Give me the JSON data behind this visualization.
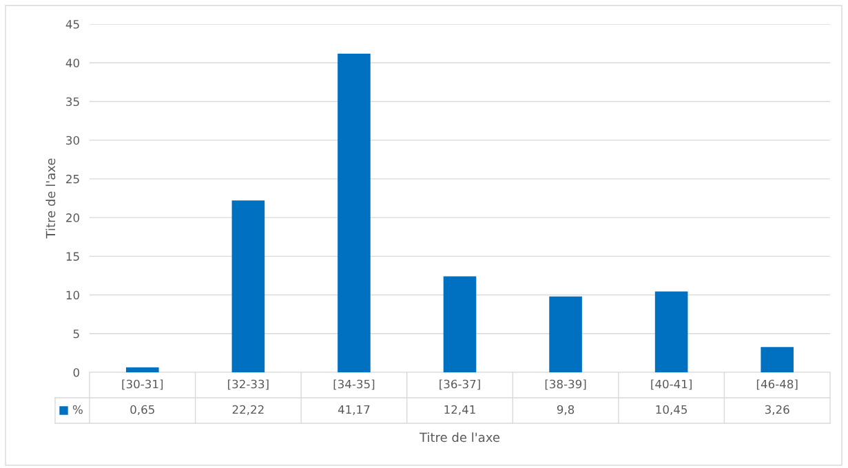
{
  "chart_data": {
    "type": "bar",
    "categories": [
      "[30-31]",
      "[32-33]",
      "[34-35]",
      "[36-37]",
      "[38-39]",
      "[40-41]",
      "[46-48]"
    ],
    "series": [
      {
        "name": "%",
        "color": "#0070c0",
        "values": [
          0.65,
          22.22,
          41.17,
          12.41,
          9.8,
          10.45,
          3.26
        ],
        "value_labels": [
          "0,65",
          "22,22",
          "41,17",
          "12,41",
          "9,8",
          "10,45",
          "3,26"
        ]
      }
    ],
    "xlabel": "Titre de l'axe",
    "ylabel": "Titre de l'axe",
    "ylim": [
      0,
      45
    ],
    "yticks": [
      0,
      5,
      10,
      15,
      20,
      25,
      30,
      35,
      40,
      45
    ],
    "grid": "y",
    "legend": "bottom"
  }
}
